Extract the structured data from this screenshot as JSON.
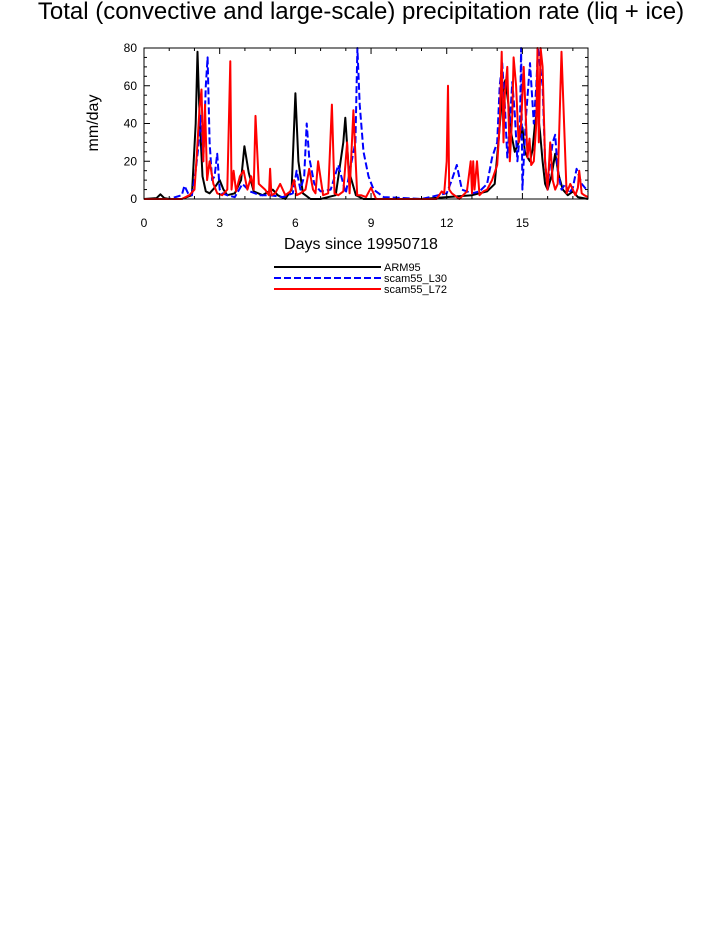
{
  "chart_data": {
    "type": "line",
    "title": "Total (convective and large-scale) precipitation rate (liq + ice)",
    "xlabel": "Days since 19950718",
    "ylabel": "mm/day",
    "xlim": [
      0,
      17.6
    ],
    "ylim": [
      0,
      80
    ],
    "xticks": [
      0,
      3,
      6,
      9,
      12,
      15
    ],
    "yticks": [
      0,
      20,
      40,
      60,
      80
    ],
    "legend_position": "bottom-center",
    "grid": false,
    "series": [
      {
        "name": "ARM95",
        "color": "#000000",
        "dash": "solid",
        "x": [
          0.0,
          0.5,
          0.65,
          0.8,
          1.0,
          1.5,
          1.9,
          2.05,
          2.12,
          2.2,
          2.32,
          2.45,
          2.6,
          2.8,
          3.0,
          3.15,
          3.3,
          3.6,
          3.85,
          3.98,
          4.15,
          4.35,
          4.7,
          4.95,
          5.1,
          5.3,
          5.6,
          5.85,
          6.0,
          6.12,
          6.3,
          6.6,
          7.0,
          7.6,
          7.9,
          7.98,
          8.12,
          8.4,
          8.7,
          9.0,
          11.0,
          13.0,
          13.6,
          13.9,
          14.05,
          14.2,
          14.32,
          14.45,
          14.55,
          14.7,
          14.85,
          15.0,
          15.1,
          15.2,
          15.3,
          15.4,
          15.5,
          15.6,
          15.7,
          15.8,
          15.9,
          16.0,
          16.15,
          16.3,
          16.45,
          16.6,
          16.8,
          17.0,
          17.2,
          17.6
        ],
        "y": [
          0,
          0.5,
          2.5,
          0.5,
          0,
          0,
          2,
          40,
          78,
          45,
          12,
          4,
          3,
          6,
          10,
          5,
          2,
          3,
          10,
          28,
          14,
          4,
          2,
          4,
          5,
          2,
          0,
          5,
          56,
          20,
          3,
          0,
          0,
          2,
          30,
          43,
          15,
          2,
          0,
          0,
          0,
          2,
          4,
          8,
          30,
          55,
          63,
          50,
          35,
          25,
          30,
          38,
          25,
          22,
          20,
          26,
          40,
          48,
          35,
          20,
          8,
          5,
          12,
          24,
          12,
          5,
          2,
          4,
          1,
          0
        ]
      },
      {
        "name": "scam55_L30",
        "color": "#0000ff",
        "dash": "dashed",
        "x": [
          0.0,
          1.0,
          1.5,
          1.6,
          1.75,
          1.9,
          2.05,
          2.15,
          2.25,
          2.35,
          2.45,
          2.52,
          2.6,
          2.7,
          2.8,
          2.9,
          3.0,
          3.1,
          3.3,
          3.6,
          3.9,
          4.2,
          4.6,
          5.0,
          5.5,
          5.9,
          6.05,
          6.2,
          6.35,
          6.45,
          6.55,
          6.75,
          7.0,
          7.4,
          7.7,
          8.0,
          8.2,
          8.38,
          8.46,
          8.55,
          8.7,
          8.9,
          9.1,
          9.5,
          11.0,
          12.0,
          12.2,
          12.4,
          12.6,
          13.0,
          13.3,
          13.6,
          13.8,
          14.0,
          14.1,
          14.2,
          14.3,
          14.4,
          14.5,
          14.6,
          14.7,
          14.8,
          14.9,
          14.95,
          15.0,
          15.05,
          15.15,
          15.3,
          15.45,
          15.55,
          15.62,
          15.7,
          15.8,
          15.9,
          16.0,
          16.1,
          16.2,
          16.3,
          16.4,
          16.55,
          16.7,
          16.85,
          17.0,
          17.15,
          17.35,
          17.6
        ],
        "y": [
          0,
          0,
          2,
          7,
          3,
          2,
          15,
          27,
          44,
          20,
          60,
          75,
          30,
          10,
          12,
          24,
          5,
          3,
          2,
          1,
          8,
          4,
          2,
          2,
          1,
          3,
          15,
          5,
          12,
          40,
          22,
          8,
          4,
          5,
          18,
          3,
          18,
          30,
          80,
          50,
          25,
          12,
          5,
          1,
          0,
          3,
          10,
          18,
          5,
          3,
          4,
          8,
          22,
          30,
          60,
          72,
          50,
          22,
          40,
          62,
          45,
          20,
          35,
          80,
          5,
          20,
          45,
          72,
          40,
          60,
          80,
          70,
          60,
          20,
          5,
          20,
          30,
          34,
          15,
          5,
          8,
          3,
          6,
          16,
          8,
          4
        ]
      },
      {
        "name": "scam55_L72",
        "color": "#ff0000",
        "dash": "solid",
        "x": [
          0.0,
          1.5,
          1.8,
          2.0,
          2.1,
          2.2,
          2.28,
          2.35,
          2.42,
          2.5,
          2.6,
          2.75,
          2.9,
          3.1,
          3.3,
          3.42,
          3.47,
          3.55,
          3.65,
          3.8,
          3.95,
          4.1,
          4.25,
          4.35,
          4.42,
          4.55,
          4.8,
          4.95,
          5.0,
          5.05,
          5.2,
          5.4,
          5.6,
          5.8,
          5.95,
          6.05,
          6.2,
          6.4,
          6.55,
          6.7,
          6.8,
          6.9,
          7.1,
          7.3,
          7.45,
          7.55,
          7.7,
          7.9,
          8.05,
          8.15,
          8.3,
          8.45,
          8.6,
          8.8,
          9.0,
          9.2,
          11.0,
          11.6,
          11.8,
          11.9,
          12.0,
          12.05,
          12.1,
          12.2,
          12.3,
          12.5,
          12.8,
          12.95,
          13.0,
          13.05,
          13.1,
          13.2,
          13.3,
          13.45,
          13.6,
          13.8,
          14.0,
          14.1,
          14.18,
          14.25,
          14.3,
          14.4,
          14.5,
          14.6,
          14.65,
          14.75,
          14.85,
          14.95,
          15.05,
          15.2,
          15.28,
          15.35,
          15.45,
          15.55,
          15.6,
          15.65,
          15.72,
          15.8,
          15.9,
          16.0,
          16.1,
          16.2,
          16.3,
          16.4,
          16.55,
          16.75,
          16.9,
          17.1,
          17.2,
          17.25,
          17.35,
          17.45,
          17.6
        ],
        "y": [
          0,
          0,
          2,
          5,
          25,
          48,
          58,
          20,
          50,
          10,
          20,
          8,
          3,
          2,
          5,
          73,
          5,
          15,
          4,
          12,
          15,
          5,
          12,
          5,
          44,
          8,
          5,
          2,
          16,
          2,
          3,
          8,
          2,
          4,
          10,
          2,
          3,
          5,
          16,
          5,
          3,
          20,
          2,
          3,
          50,
          3,
          2,
          4,
          30,
          3,
          47,
          2,
          2,
          1,
          6,
          0,
          0,
          0,
          4,
          3,
          20,
          60,
          5,
          3,
          2,
          0,
          4,
          20,
          3,
          20,
          5,
          20,
          2,
          4,
          5,
          10,
          18,
          40,
          78,
          30,
          55,
          70,
          20,
          45,
          75,
          60,
          30,
          40,
          70,
          22,
          32,
          18,
          20,
          40,
          80,
          30,
          80,
          70,
          20,
          5,
          30,
          10,
          5,
          8,
          78,
          3,
          8,
          2,
          6,
          15,
          3,
          2,
          1
        ]
      }
    ]
  }
}
